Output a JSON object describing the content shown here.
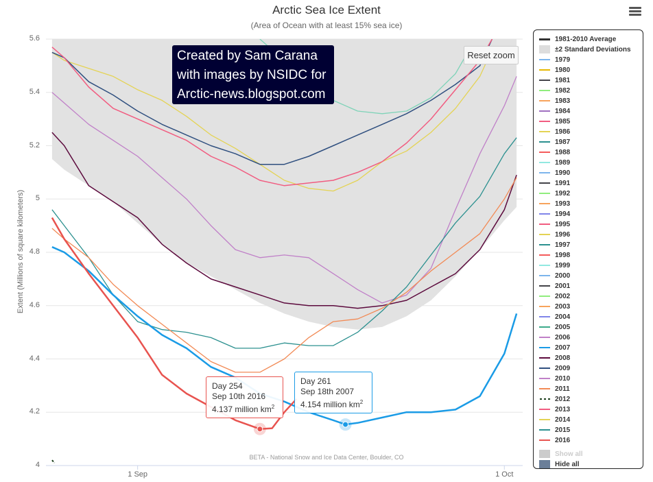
{
  "title": "Arctic Sea Ice Extent",
  "subtitle": "(Area of Ocean with at least 15% sea ice)",
  "banner": [
    "Created by Sam Carana",
    "with images by NSIDC for",
    "Arctic-news.blogspot.com"
  ],
  "reset_zoom_label": "Reset zoom",
  "credit": "BETA - National Snow and Ice Data Center, Boulder, CO",
  "tooltips": [
    {
      "lines": [
        "Day 254",
        "Sep 10th 2016"
      ],
      "value": "4.137 million km",
      "sup": "2",
      "color": "#e8534f"
    },
    {
      "lines": [
        "Day 261",
        "Sep 18th 2007"
      ],
      "value": "4.154 million km",
      "sup": "2",
      "color": "#1a9be6"
    }
  ],
  "legend": {
    "items": [
      {
        "label": "1981-2010 Average",
        "color": "#333333",
        "kind": "line-thick"
      },
      {
        "label": "±2 Standard Deviations",
        "color": "#dddddd",
        "kind": "box"
      },
      {
        "label": "1979",
        "color": "#7cb5ec",
        "kind": "line"
      },
      {
        "label": "1980",
        "color": "#e6b800",
        "kind": "line"
      },
      {
        "label": "1981",
        "color": "#434348",
        "kind": "line"
      },
      {
        "label": "1982",
        "color": "#90ed7d",
        "kind": "line"
      },
      {
        "label": "1983",
        "color": "#f7a35c",
        "kind": "line"
      },
      {
        "label": "1984",
        "color": "#a070c0",
        "kind": "line"
      },
      {
        "label": "1985",
        "color": "#f15c80",
        "kind": "line"
      },
      {
        "label": "1986",
        "color": "#e4d354",
        "kind": "line"
      },
      {
        "label": "1987",
        "color": "#2b908f",
        "kind": "line"
      },
      {
        "label": "1988",
        "color": "#f45b5b",
        "kind": "line"
      },
      {
        "label": "1989",
        "color": "#91e8e1",
        "kind": "line"
      },
      {
        "label": "1990",
        "color": "#7cb5ec",
        "kind": "line"
      },
      {
        "label": "1991",
        "color": "#434348",
        "kind": "line"
      },
      {
        "label": "1992",
        "color": "#90ed7d",
        "kind": "line"
      },
      {
        "label": "1993",
        "color": "#f7a35c",
        "kind": "line"
      },
      {
        "label": "1994",
        "color": "#8085e9",
        "kind": "line"
      },
      {
        "label": "1995",
        "color": "#f15c80",
        "kind": "line"
      },
      {
        "label": "1996",
        "color": "#e4d354",
        "kind": "line"
      },
      {
        "label": "1997",
        "color": "#2b908f",
        "kind": "line"
      },
      {
        "label": "1998",
        "color": "#f45b5b",
        "kind": "line"
      },
      {
        "label": "1999",
        "color": "#91e8e1",
        "kind": "line"
      },
      {
        "label": "2000",
        "color": "#7cb5ec",
        "kind": "line"
      },
      {
        "label": "2001",
        "color": "#434348",
        "kind": "line"
      },
      {
        "label": "2002",
        "color": "#90ed7d",
        "kind": "line"
      },
      {
        "label": "2003",
        "color": "#f7a35c",
        "kind": "line"
      },
      {
        "label": "2004",
        "color": "#8085e9",
        "kind": "line"
      },
      {
        "label": "2005",
        "color": "#3caa8a",
        "kind": "line"
      },
      {
        "label": "2006",
        "color": "#c080c8",
        "kind": "line"
      },
      {
        "label": "2007",
        "color": "#1a9be6",
        "kind": "line"
      },
      {
        "label": "2008",
        "color": "#5c0a3d",
        "kind": "line"
      },
      {
        "label": "2009",
        "color": "#2f4f7f",
        "kind": "line"
      },
      {
        "label": "2010",
        "color": "#c080c8",
        "kind": "line"
      },
      {
        "label": "2011",
        "color": "#f28a55",
        "kind": "line"
      },
      {
        "label": "2012",
        "color": "#1a3d1a",
        "kind": "dash"
      },
      {
        "label": "2013",
        "color": "#f15c80",
        "kind": "line"
      },
      {
        "label": "2014",
        "color": "#e4d354",
        "kind": "line"
      },
      {
        "label": "2015",
        "color": "#2b908f",
        "kind": "line"
      },
      {
        "label": "2016",
        "color": "#e8534f",
        "kind": "line"
      },
      {
        "label": "Show all",
        "color": "#cccccc",
        "kind": "box-grey"
      },
      {
        "label": "Hide all",
        "color": "#6b7f99",
        "kind": "box-dark"
      }
    ]
  },
  "chart_data": {
    "type": "line",
    "title": "Arctic Sea Ice Extent",
    "subtitle": "(Area of Ocean with at least 15% sea ice)",
    "ylabel": "Extent (Millions of square kilometers)",
    "xlabel": "",
    "ylim": [
      4,
      5.6
    ],
    "xlim": [
      236.5,
      275.5
    ],
    "yticks": [
      4,
      4.2,
      4.4,
      4.6,
      4.8,
      5,
      5.2,
      5.4,
      5.6
    ],
    "xticks": [
      {
        "day": 244,
        "label": "1 Sep"
      },
      {
        "day": 274,
        "label": "1 Oct"
      }
    ],
    "grid": true,
    "legend_position": "right",
    "band_2sd": {
      "x": [
        237,
        238,
        240,
        242,
        244,
        246,
        248,
        250,
        252,
        254,
        256,
        258,
        260,
        262,
        264,
        266,
        268,
        270,
        272,
        274,
        275
      ],
      "lower": [
        5.15,
        5.11,
        5.05,
        4.99,
        4.91,
        4.83,
        4.76,
        4.71,
        4.66,
        4.61,
        4.57,
        4.54,
        4.52,
        4.51,
        4.52,
        4.56,
        4.62,
        4.71,
        4.81,
        4.92,
        4.97
      ],
      "upper": [
        5.6,
        5.6,
        5.6,
        5.6,
        5.6,
        5.6,
        5.6,
        5.6,
        5.6,
        5.6,
        5.6,
        5.6,
        5.6,
        5.6,
        5.6,
        5.6,
        5.6,
        5.6,
        5.6,
        5.6,
        5.6
      ]
    },
    "series": [
      {
        "name": "1989",
        "color": "#7fd3b8",
        "width": 1.3,
        "x": [
          254,
          256,
          258,
          260,
          262,
          264,
          266,
          268,
          270,
          271
        ],
        "y": [
          5.6,
          5.52,
          5.44,
          5.37,
          5.33,
          5.32,
          5.33,
          5.38,
          5.47,
          5.55
        ]
      },
      {
        "name": "1986",
        "color": "#e4d354",
        "width": 1.3,
        "x": [
          237,
          238,
          240,
          242,
          244,
          246,
          248,
          250,
          252,
          254,
          256,
          258,
          260,
          262,
          264,
          266,
          268,
          270,
          272,
          273
        ],
        "y": [
          5.55,
          5.52,
          5.49,
          5.46,
          5.41,
          5.37,
          5.31,
          5.24,
          5.19,
          5.13,
          5.07,
          5.04,
          5.03,
          5.07,
          5.14,
          5.18,
          5.25,
          5.34,
          5.46,
          5.56
        ]
      },
      {
        "name": "2009",
        "color": "#2f4f7f",
        "width": 1.5,
        "x": [
          237,
          238,
          240,
          242,
          244,
          246,
          248,
          250,
          252,
          254,
          256,
          258,
          260,
          262,
          264,
          266,
          268,
          270,
          272,
          273
        ],
        "y": [
          5.55,
          5.53,
          5.44,
          5.39,
          5.33,
          5.28,
          5.24,
          5.2,
          5.17,
          5.13,
          5.13,
          5.16,
          5.2,
          5.24,
          5.28,
          5.32,
          5.37,
          5.43,
          5.5,
          5.6
        ]
      },
      {
        "name": "2013",
        "color": "#f15c80",
        "width": 1.5,
        "x": [
          237,
          238,
          240,
          242,
          244,
          246,
          248,
          250,
          252,
          254,
          256,
          258,
          260,
          262,
          264,
          266,
          268,
          270,
          272,
          273
        ],
        "y": [
          5.57,
          5.53,
          5.42,
          5.34,
          5.3,
          5.26,
          5.22,
          5.16,
          5.12,
          5.07,
          5.05,
          5.06,
          5.07,
          5.1,
          5.14,
          5.21,
          5.3,
          5.41,
          5.52,
          5.6
        ]
      },
      {
        "name": "2010",
        "color": "#c080c8",
        "width": 1.3,
        "x": [
          237,
          238,
          240,
          242,
          244,
          246,
          248,
          250,
          252,
          254,
          256,
          258,
          260,
          262,
          264,
          266,
          268,
          270,
          272,
          274,
          275
        ],
        "y": [
          5.4,
          5.36,
          5.28,
          5.22,
          5.16,
          5.08,
          5.0,
          4.9,
          4.81,
          4.78,
          4.79,
          4.78,
          4.72,
          4.66,
          4.61,
          4.64,
          4.74,
          4.96,
          5.17,
          5.35,
          5.46
        ]
      },
      {
        "name": "2008",
        "color": "#5c0a3d",
        "width": 1.5,
        "x": [
          237,
          238,
          240,
          242,
          244,
          246,
          248,
          250,
          252,
          254,
          256,
          258,
          260,
          262,
          264,
          266,
          268,
          270,
          272,
          274,
          275
        ],
        "y": [
          5.25,
          5.2,
          5.05,
          4.99,
          4.93,
          4.83,
          4.76,
          4.7,
          4.67,
          4.64,
          4.61,
          4.6,
          4.6,
          4.59,
          4.6,
          4.62,
          4.67,
          4.72,
          4.81,
          4.96,
          5.09
        ]
      },
      {
        "name": "2015",
        "color": "#2b908f",
        "width": 1.3,
        "x": [
          237,
          238,
          240,
          242,
          244,
          246,
          248,
          250,
          252,
          254,
          256,
          258,
          260,
          262,
          264,
          266,
          268,
          270,
          272,
          274,
          275
        ],
        "y": [
          4.96,
          4.9,
          4.78,
          4.64,
          4.54,
          4.51,
          4.5,
          4.48,
          4.44,
          4.44,
          4.46,
          4.45,
          4.45,
          4.5,
          4.58,
          4.67,
          4.79,
          4.91,
          5.01,
          5.17,
          5.23
        ]
      },
      {
        "name": "2011",
        "color": "#f28a55",
        "width": 1.3,
        "x": [
          237,
          238,
          240,
          242,
          244,
          246,
          248,
          250,
          252,
          254,
          256,
          258,
          260,
          262,
          264,
          266,
          268,
          270,
          272,
          274,
          275
        ],
        "y": [
          4.89,
          4.85,
          4.78,
          4.68,
          4.6,
          4.53,
          4.46,
          4.39,
          4.35,
          4.35,
          4.4,
          4.48,
          4.54,
          4.55,
          4.59,
          4.65,
          4.73,
          4.8,
          4.87,
          5.0,
          5.08
        ]
      },
      {
        "name": "2007",
        "color": "#1a9be6",
        "width": 2.5,
        "x": [
          237,
          238,
          240,
          242,
          244,
          246,
          248,
          250,
          252,
          254,
          256,
          258,
          260,
          261,
          262,
          264,
          266,
          268,
          270,
          272,
          274,
          275
        ],
        "y": [
          4.82,
          4.8,
          4.73,
          4.64,
          4.56,
          4.49,
          4.44,
          4.37,
          4.33,
          4.27,
          4.24,
          4.2,
          4.17,
          4.154,
          4.16,
          4.18,
          4.2,
          4.2,
          4.21,
          4.26,
          4.42,
          4.57
        ]
      },
      {
        "name": "2016",
        "color": "#e8534f",
        "width": 2.5,
        "x": [
          237,
          238,
          240,
          242,
          244,
          246,
          248,
          250,
          252,
          254,
          255,
          256,
          257
        ],
        "y": [
          4.93,
          4.85,
          4.72,
          4.6,
          4.48,
          4.34,
          4.27,
          4.22,
          4.17,
          4.137,
          4.14,
          4.2,
          4.25
        ]
      },
      {
        "name": "2012",
        "color": "#1a3d1a",
        "width": 2.0,
        "dash": true,
        "x": [
          237,
          237.2
        ],
        "y": [
          4.02,
          4.01
        ]
      }
    ],
    "highlights": [
      {
        "series": "2016",
        "day": 254,
        "value": 4.137
      },
      {
        "series": "2007",
        "day": 261,
        "value": 4.154
      }
    ]
  }
}
